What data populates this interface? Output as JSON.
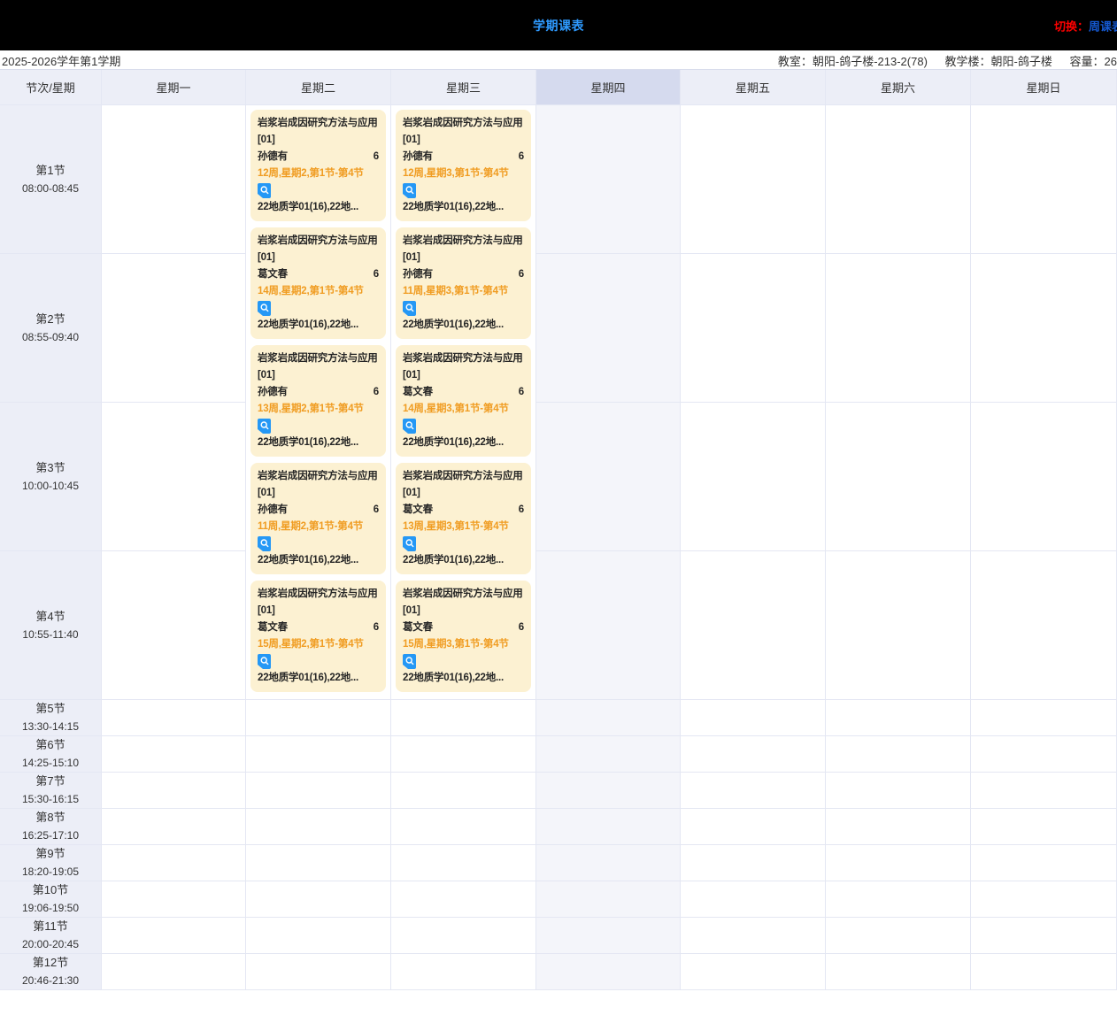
{
  "colors": {
    "topbar_bg": "#000000",
    "title_blue": "#2e9aff",
    "switch_red": "#ff0000",
    "switch_link_blue": "#1559d1",
    "header_bg": "#eceef7",
    "today_header_bg": "#d5daee",
    "today_column_bg": "#f4f5fa",
    "grid_line": "#e4e7f3",
    "card_bg": "#fcf1d2",
    "card_schedule_orange": "#f09c21",
    "icon_blue": "#2598f5"
  },
  "topbar": {
    "title": "学期课表",
    "switch_label": "切换：",
    "switch_target": "周课表"
  },
  "info_bar": {
    "semester": "2025-2026学年第1学期",
    "classroom_label": "教室：",
    "classroom": "朝阳-鸽子楼-213-2(78)",
    "building_label": "教学楼：",
    "building": "朝阳-鸽子楼",
    "capacity_label": "容量：",
    "capacity": "26"
  },
  "table": {
    "corner_header": "节次/星期",
    "days": [
      {
        "label": "星期一",
        "highlighted": false
      },
      {
        "label": "星期二",
        "highlighted": false
      },
      {
        "label": "星期三",
        "highlighted": false
      },
      {
        "label": "星期四",
        "highlighted": true
      },
      {
        "label": "星期五",
        "highlighted": false
      },
      {
        "label": "星期六",
        "highlighted": false
      },
      {
        "label": "星期日",
        "highlighted": false
      }
    ],
    "periods": [
      {
        "name": "第1节",
        "time": "08:00-08:45"
      },
      {
        "name": "第2节",
        "time": "08:55-09:40"
      },
      {
        "name": "第3节",
        "time": "10:00-10:45"
      },
      {
        "name": "第4节",
        "time": "10:55-11:40"
      },
      {
        "name": "第5节",
        "time": "13:30-14:15"
      },
      {
        "name": "第6节",
        "time": "14:25-15:10"
      },
      {
        "name": "第7节",
        "time": "15:30-16:15"
      },
      {
        "name": "第8节",
        "time": "16:25-17:10"
      },
      {
        "name": "第9节",
        "time": "18:20-19:05"
      },
      {
        "name": "第10节",
        "time": "19:06-19:50"
      },
      {
        "name": "第11节",
        "time": "20:00-20:45"
      },
      {
        "name": "第12节",
        "time": "20:46-21:30"
      }
    ],
    "merged_row_span": 4
  },
  "courses": [
    {
      "day": "星期二",
      "cards": [
        {
          "title": "岩浆岩成因研究方法与应用[01]",
          "teacher": "孙德有",
          "count": "6",
          "schedule": "12周,星期2,第1节-第4节",
          "students": "22地质学01(16),22地...",
          "icon": "preview-search-icon"
        },
        {
          "title": "岩浆岩成因研究方法与应用[01]",
          "teacher": "葛文春",
          "count": "6",
          "schedule": "14周,星期2,第1节-第4节",
          "students": "22地质学01(16),22地...",
          "icon": "preview-search-icon"
        },
        {
          "title": "岩浆岩成因研究方法与应用[01]",
          "teacher": "孙德有",
          "count": "6",
          "schedule": "13周,星期2,第1节-第4节",
          "students": "22地质学01(16),22地...",
          "icon": "preview-search-icon"
        },
        {
          "title": "岩浆岩成因研究方法与应用[01]",
          "teacher": "孙德有",
          "count": "6",
          "schedule": "11周,星期2,第1节-第4节",
          "students": "22地质学01(16),22地...",
          "icon": "preview-search-icon"
        },
        {
          "title": "岩浆岩成因研究方法与应用[01]",
          "teacher": "葛文春",
          "count": "6",
          "schedule": "15周,星期2,第1节-第4节",
          "students": "22地质学01(16),22地...",
          "icon": "preview-search-icon"
        }
      ]
    },
    {
      "day": "星期三",
      "cards": [
        {
          "title": "岩浆岩成因研究方法与应用[01]",
          "teacher": "孙德有",
          "count": "6",
          "schedule": "12周,星期3,第1节-第4节",
          "students": "22地质学01(16),22地...",
          "icon": "preview-search-icon"
        },
        {
          "title": "岩浆岩成因研究方法与应用[01]",
          "teacher": "孙德有",
          "count": "6",
          "schedule": "11周,星期3,第1节-第4节",
          "students": "22地质学01(16),22地...",
          "icon": "preview-search-icon"
        },
        {
          "title": "岩浆岩成因研究方法与应用[01]",
          "teacher": "葛文春",
          "count": "6",
          "schedule": "14周,星期3,第1节-第4节",
          "students": "22地质学01(16),22地...",
          "icon": "preview-search-icon"
        },
        {
          "title": "岩浆岩成因研究方法与应用[01]",
          "teacher": "葛文春",
          "count": "6",
          "schedule": "13周,星期3,第1节-第4节",
          "students": "22地质学01(16),22地...",
          "icon": "preview-search-icon"
        },
        {
          "title": "岩浆岩成因研究方法与应用[01]",
          "teacher": "葛文春",
          "count": "6",
          "schedule": "15周,星期3,第1节-第4节",
          "students": "22地质学01(16),22地...",
          "icon": "preview-search-icon"
        }
      ]
    }
  ]
}
